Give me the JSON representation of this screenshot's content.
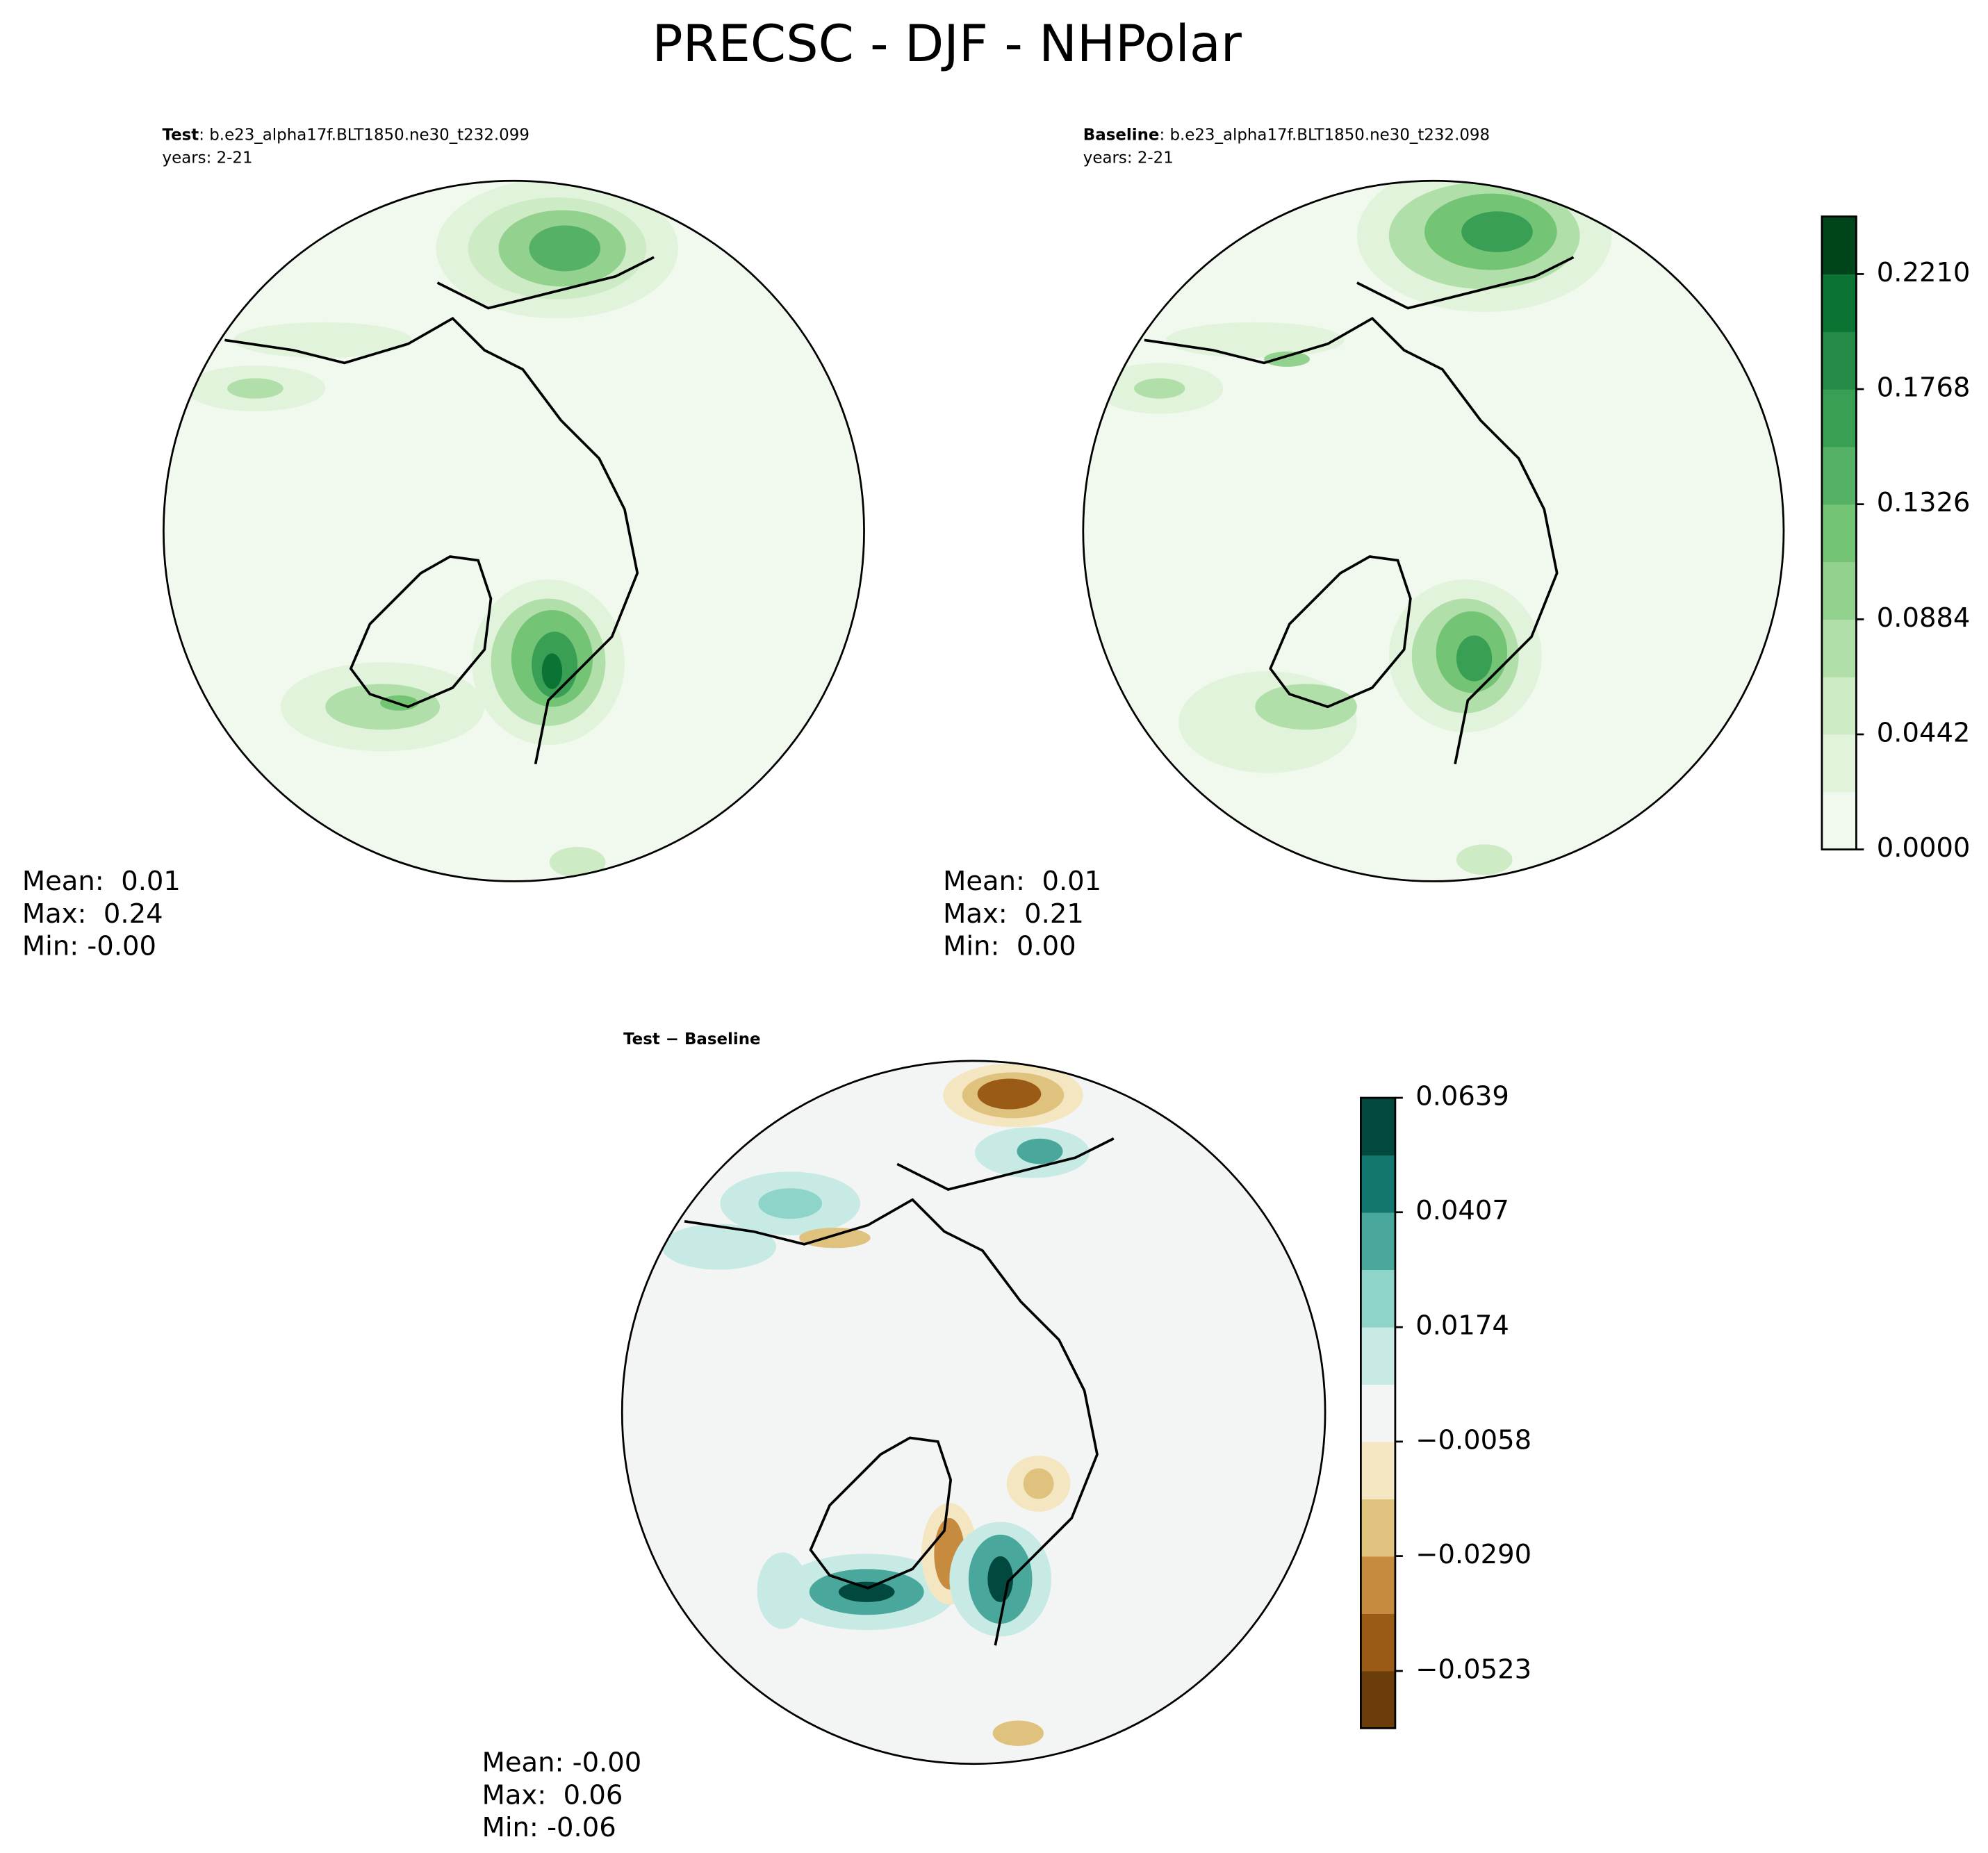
{
  "title": "PRECSC - DJF - NHPolar",
  "panels": [
    {
      "name": "Test",
      "case": ": b.e23_alpha17f.BLT1850.ne30_t232.099",
      "years": "years: 2-21",
      "stats": [
        "Mean:  0.01",
        "Max:  0.24",
        "Min: -0.00"
      ]
    },
    {
      "name": "Baseline",
      "case": ": b.e23_alpha17f.BLT1850.ne30_t232.098",
      "years": "years: 2-21",
      "stats": [
        "Mean:  0.01",
        "Max:  0.21",
        "Min:  0.00"
      ]
    },
    {
      "name": "Test − Baseline",
      "stats": [
        "Mean: -0.00",
        "Max:  0.06",
        "Min: -0.06"
      ]
    }
  ],
  "colorbars": [
    {
      "lim": [
        0,
        0.2431
      ],
      "ticks": [
        {
          "value": 0,
          "label": "0.0000"
        },
        {
          "value": 0.0442,
          "label": "0.0442"
        },
        {
          "value": 0.0884,
          "label": "0.0884"
        },
        {
          "value": 0.1326,
          "label": "0.1326"
        },
        {
          "value": 0.1768,
          "label": "0.1768"
        },
        {
          "value": 0.221,
          "label": "0.2210"
        }
      ],
      "colors": [
        "#f1f9ee",
        "#e2f3dc",
        "#cdebc5",
        "#b1dfa9",
        "#93d28e",
        "#74c476",
        "#55b165",
        "#389f55",
        "#238b45",
        "#0b7434",
        "#00441b"
      ]
    },
    {
      "lim": [
        -0.0639,
        0.0639
      ],
      "ticks": [
        {
          "value": -0.0523,
          "label": "−0.0523"
        },
        {
          "value": -0.029,
          "label": "−0.0290"
        },
        {
          "value": -0.0058,
          "label": "−0.0058"
        },
        {
          "value": 0.0174,
          "label": "0.0174"
        },
        {
          "value": 0.0407,
          "label": "0.0407"
        },
        {
          "value": 0.0639,
          "label": "0.0639"
        }
      ],
      "colors": [
        "#6b3d0a",
        "#9a5b16",
        "#c68b3f",
        "#dfc27d",
        "#f5e6c2",
        "#f3f5f4",
        "#c7eae5",
        "#8fd4c8",
        "#4aa79c",
        "#12786f",
        "#01493f"
      ]
    }
  ]
}
